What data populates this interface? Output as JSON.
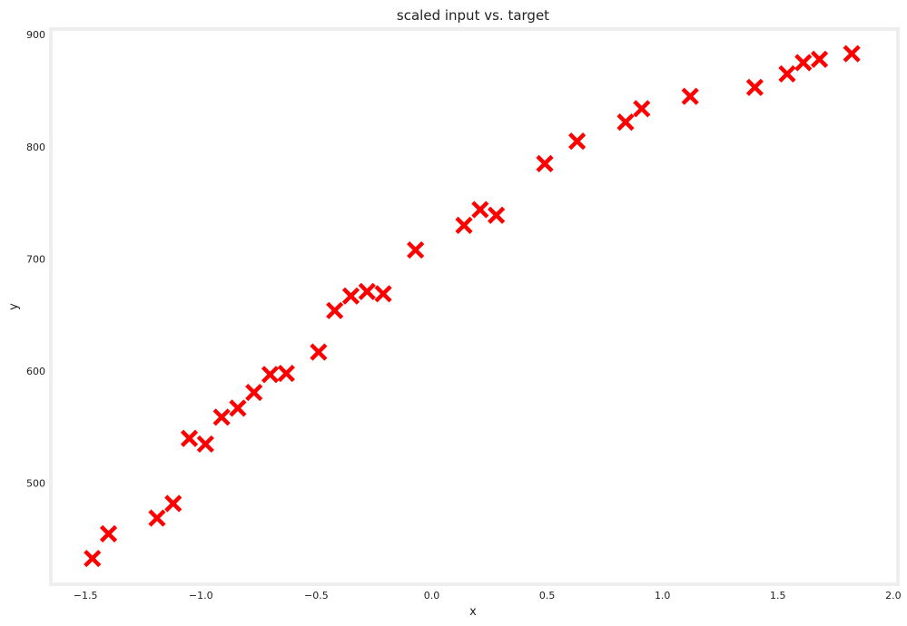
{
  "chart_data": {
    "type": "scatter",
    "title": "scaled input vs. target",
    "xlabel": "x",
    "ylabel": "y",
    "xlim": [
      -1.65,
      2.02
    ],
    "ylim": [
      410,
      905
    ],
    "xticks": [
      "−1.5",
      "−1.0",
      "−0.5",
      "0.0",
      "0.5",
      "1.0",
      "1.5",
      "2.0"
    ],
    "xtick_values": [
      -1.5,
      -1.0,
      -0.5,
      0.0,
      0.5,
      1.0,
      1.5,
      2.0
    ],
    "yticks": [
      "500",
      "600",
      "700",
      "800",
      "900"
    ],
    "ytick_values": [
      500,
      600,
      700,
      800,
      900
    ],
    "grid": false,
    "marker": "x",
    "marker_color": "#ff0000",
    "frame_color": "#eeeeee",
    "points": [
      {
        "x": -1.47,
        "y": 433
      },
      {
        "x": -1.4,
        "y": 455
      },
      {
        "x": -1.19,
        "y": 469
      },
      {
        "x": -1.12,
        "y": 482
      },
      {
        "x": -1.05,
        "y": 540
      },
      {
        "x": -0.98,
        "y": 535
      },
      {
        "x": -0.91,
        "y": 559
      },
      {
        "x": -0.84,
        "y": 567
      },
      {
        "x": -0.77,
        "y": 581
      },
      {
        "x": -0.7,
        "y": 597
      },
      {
        "x": -0.63,
        "y": 598
      },
      {
        "x": -0.49,
        "y": 617
      },
      {
        "x": -0.42,
        "y": 654
      },
      {
        "x": -0.35,
        "y": 667
      },
      {
        "x": -0.28,
        "y": 671
      },
      {
        "x": -0.21,
        "y": 669
      },
      {
        "x": -0.07,
        "y": 708
      },
      {
        "x": 0.14,
        "y": 730
      },
      {
        "x": 0.21,
        "y": 744
      },
      {
        "x": 0.28,
        "y": 739
      },
      {
        "x": 0.49,
        "y": 785
      },
      {
        "x": 0.63,
        "y": 805
      },
      {
        "x": 0.84,
        "y": 822
      },
      {
        "x": 0.91,
        "y": 834
      },
      {
        "x": 1.12,
        "y": 845
      },
      {
        "x": 1.4,
        "y": 853
      },
      {
        "x": 1.54,
        "y": 865
      },
      {
        "x": 1.61,
        "y": 875
      },
      {
        "x": 1.68,
        "y": 878
      },
      {
        "x": 1.82,
        "y": 883
      }
    ]
  }
}
